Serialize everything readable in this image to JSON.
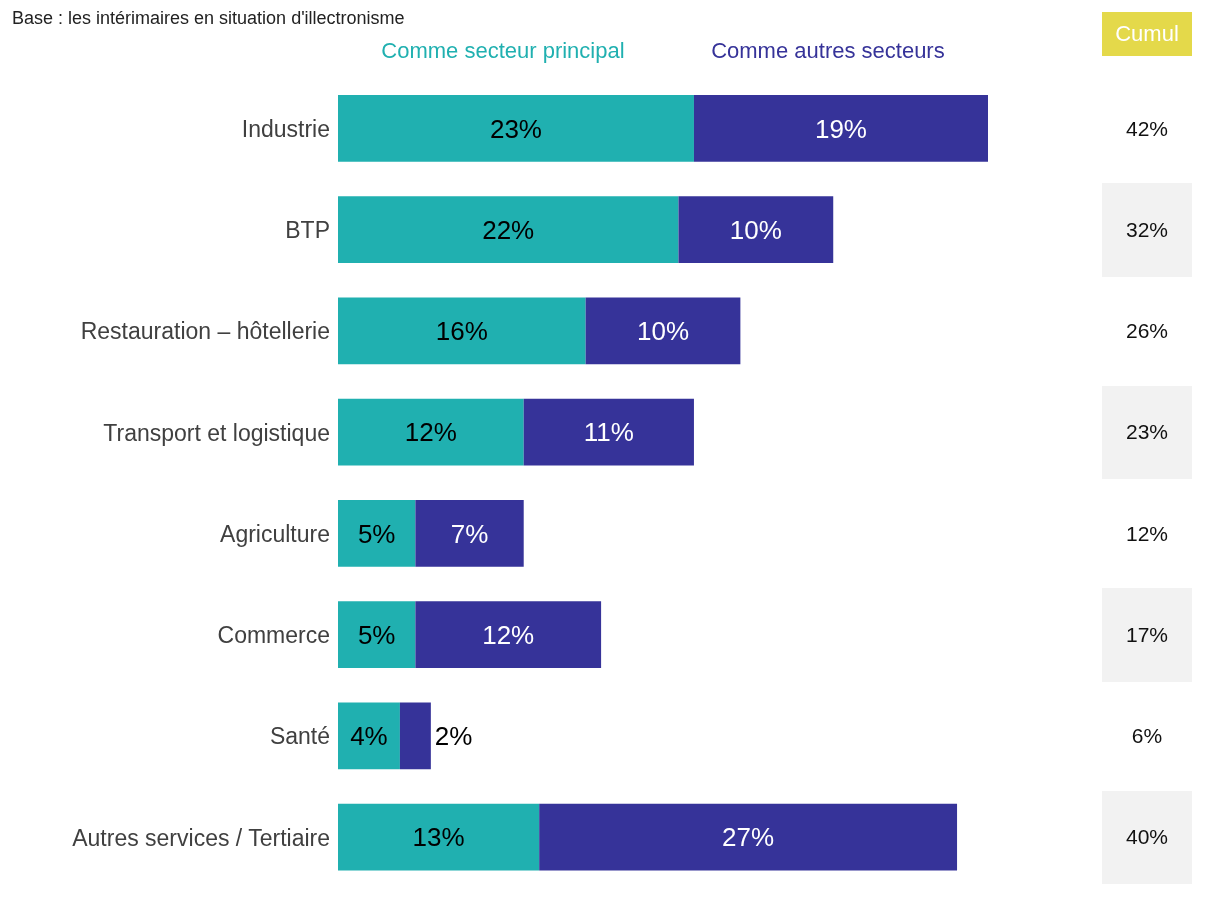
{
  "chart_data": [
    {
      "type": "bar",
      "orientation": "horizontal",
      "stacked": true,
      "subtitle": "Base : les intérimaires en situation d'illectronisme",
      "categories": [
        "Industrie",
        "BTP",
        "Restauration – hôtellerie",
        "Transport et logistique",
        "Agriculture",
        "Commerce",
        "Santé",
        "Autres services / Tertiaire"
      ],
      "series": [
        {
          "name": "Comme secteur principal",
          "color": "#20b0b0",
          "values": [
            23,
            22,
            16,
            12,
            5,
            5,
            4,
            13
          ],
          "value_labels": [
            "23%",
            "22%",
            "16%",
            "12%",
            "5%",
            "5%",
            "4%",
            "13%"
          ]
        },
        {
          "name": "Comme autres secteurs",
          "color": "#363399",
          "values": [
            19,
            10,
            10,
            11,
            7,
            12,
            2,
            27
          ],
          "value_labels": [
            "19%",
            "10%",
            "10%",
            "11%",
            "7%",
            "12%",
            "2%",
            "27%"
          ]
        }
      ],
      "legend": "top",
      "grid": false
    },
    {
      "type": "other",
      "title": "Cumul",
      "value_labels": [
        "42%",
        "32%",
        "26%",
        "23%",
        "12%",
        "17%",
        "6%",
        "40%"
      ]
    }
  ]
}
